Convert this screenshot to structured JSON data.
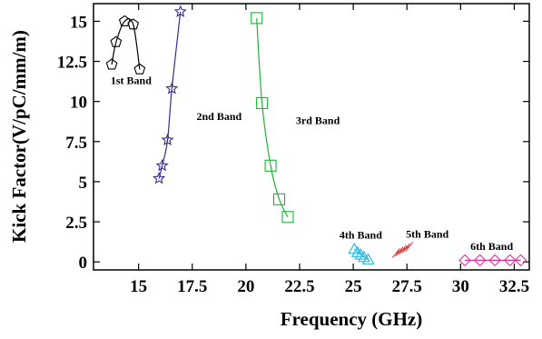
{
  "chart_data": {
    "type": "line",
    "title": "",
    "xlabel": "Frequency (GHz)",
    "ylabel": "Kick Factor(V/pC/mm/m)",
    "xlim": [
      12.9,
      33.2
    ],
    "ylim": [
      -0.5,
      16.1
    ],
    "xticks": [
      15,
      17.5,
      20,
      22.5,
      25,
      27.5,
      30,
      32.5
    ],
    "xtick_labels": [
      "15",
      "17.5",
      "20",
      "22.5",
      "25",
      "27.5",
      "30",
      "32.5"
    ],
    "yticks": [
      0,
      2.5,
      5,
      7.5,
      10,
      12.5,
      15
    ],
    "ytick_labels": [
      "0",
      "2.5",
      "5",
      "7.5",
      "10",
      "12.5",
      "15"
    ],
    "grid": false,
    "legend": "none",
    "series": [
      {
        "name": "1st Band",
        "color": "#000000",
        "marker": "pentagon",
        "points": [
          [
            13.75,
            12.3
          ],
          [
            13.95,
            13.7
          ],
          [
            14.35,
            15.0
          ],
          [
            14.75,
            14.8
          ],
          [
            15.05,
            12.0
          ]
        ]
      },
      {
        "name": "2nd Band",
        "color": "#3c2a8c",
        "marker": "star",
        "points": [
          [
            15.95,
            5.2
          ],
          [
            16.1,
            6.0
          ],
          [
            16.35,
            7.6
          ],
          [
            16.55,
            10.8
          ],
          [
            16.95,
            15.6
          ]
        ]
      },
      {
        "name": "3rd Band",
        "color": "#1db33a",
        "marker": "square",
        "points": [
          [
            20.5,
            15.2
          ],
          [
            20.75,
            9.9
          ],
          [
            21.15,
            6.0
          ],
          [
            21.55,
            3.9
          ],
          [
            21.95,
            2.8
          ]
        ]
      },
      {
        "name": "4th Band",
        "color": "#27b6e0",
        "marker": "triangle",
        "points": [
          [
            25.05,
            0.8
          ],
          [
            25.2,
            0.6
          ],
          [
            25.35,
            0.45
          ],
          [
            25.5,
            0.3
          ],
          [
            25.7,
            0.15
          ]
        ]
      },
      {
        "name": "5th Band",
        "color": "#e02828",
        "marker": "slash",
        "points": [
          [
            27.0,
            0.55
          ],
          [
            27.15,
            0.65
          ],
          [
            27.3,
            0.75
          ],
          [
            27.45,
            0.85
          ],
          [
            27.6,
            0.95
          ]
        ]
      },
      {
        "name": "6th Band",
        "color": "#e62c9c",
        "marker": "diamond",
        "points": [
          [
            30.2,
            0.1
          ],
          [
            30.9,
            0.1
          ],
          [
            31.6,
            0.1
          ],
          [
            32.3,
            0.1
          ],
          [
            32.8,
            0.1
          ]
        ]
      }
    ],
    "annotations": [
      {
        "text": "1st Band",
        "x": 14.65,
        "y": 11.1
      },
      {
        "text": "2nd Band",
        "x": 18.75,
        "y": 8.85
      },
      {
        "text": "3rd Band",
        "x": 23.35,
        "y": 8.6
      },
      {
        "text": "4th Band",
        "x": 25.35,
        "y": 1.45
      },
      {
        "text": "5th Band",
        "x": 28.45,
        "y": 1.5
      },
      {
        "text": "6th Band",
        "x": 31.45,
        "y": 0.75
      }
    ]
  }
}
